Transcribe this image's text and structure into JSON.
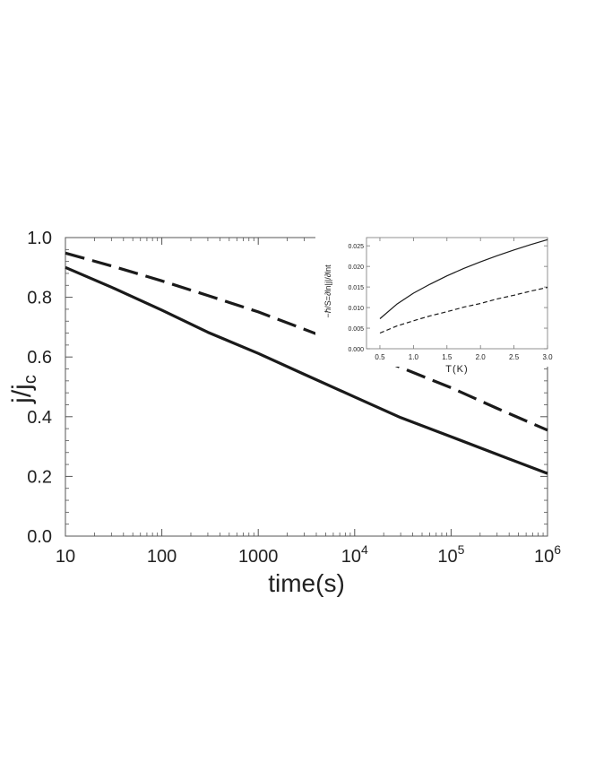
{
  "chart_data": [
    {
      "type": "line",
      "xlabel": "time(s)",
      "ylabel": "j/j",
      "ylabel_subscript": "c",
      "xscale": "log",
      "xlim": [
        10,
        1000000
      ],
      "ylim": [
        0.0,
        1.0
      ],
      "x_tick_labels": [
        {
          "base": "10",
          "sup": ""
        },
        {
          "base": "100",
          "sup": ""
        },
        {
          "base": "1000",
          "sup": ""
        },
        {
          "base": "10",
          "sup": "4"
        },
        {
          "base": "10",
          "sup": "5"
        },
        {
          "base": "10",
          "sup": "6"
        }
      ],
      "y_tick_labels": [
        "0.0",
        "0.2",
        "0.4",
        "0.6",
        "0.8",
        "1.0"
      ],
      "grid": false,
      "series": [
        {
          "style": "solid",
          "color": "#1a1a1a",
          "x": [
            10,
            30,
            100,
            300,
            1000,
            3000,
            10000,
            30000,
            100000,
            300000,
            1000000
          ],
          "y": [
            0.9,
            0.834,
            0.757,
            0.683,
            0.612,
            0.542,
            0.466,
            0.397,
            0.333,
            0.274,
            0.21
          ]
        },
        {
          "style": "dashed",
          "color": "#1a1a1a",
          "x": [
            10,
            30,
            100,
            300,
            1000,
            3000,
            10000,
            30000,
            100000,
            300000,
            1000000
          ],
          "y": [
            0.948,
            0.905,
            0.855,
            0.806,
            0.751,
            0.693,
            0.628,
            0.565,
            0.497,
            0.428,
            0.355
          ]
        }
      ]
    },
    {
      "type": "line",
      "inset": true,
      "xlabel": "T(K)",
      "ylabel": "−ℏ/S=∂ln|j|/∂lnt",
      "xlim": [
        0.3,
        3.0
      ],
      "ylim": [
        0.0,
        0.027
      ],
      "x_tick_labels": [
        "0.5",
        "1.0",
        "1.5",
        "2.0",
        "2.5",
        "3.0"
      ],
      "y_tick_labels": [
        "0.000",
        "0.005",
        "0.010",
        "0.015",
        "0.020",
        "0.025"
      ],
      "grid": false,
      "series": [
        {
          "style": "solid",
          "color": "#1a1a1a",
          "x": [
            0.5,
            0.75,
            1.0,
            1.25,
            1.5,
            1.75,
            2.0,
            2.25,
            2.5,
            2.75,
            3.0
          ],
          "y": [
            0.0073,
            0.0108,
            0.0135,
            0.0157,
            0.0177,
            0.0195,
            0.0211,
            0.0226,
            0.024,
            0.0253,
            0.0265
          ]
        },
        {
          "style": "dashed",
          "color": "#1a1a1a",
          "x": [
            0.5,
            0.75,
            1.0,
            1.25,
            1.5,
            1.75,
            2.0,
            2.25,
            2.5,
            2.75,
            3.0
          ],
          "y": [
            0.0038,
            0.0055,
            0.0068,
            0.008,
            0.009,
            0.0101,
            0.011,
            0.0121,
            0.013,
            0.014,
            0.0149
          ]
        }
      ]
    }
  ]
}
